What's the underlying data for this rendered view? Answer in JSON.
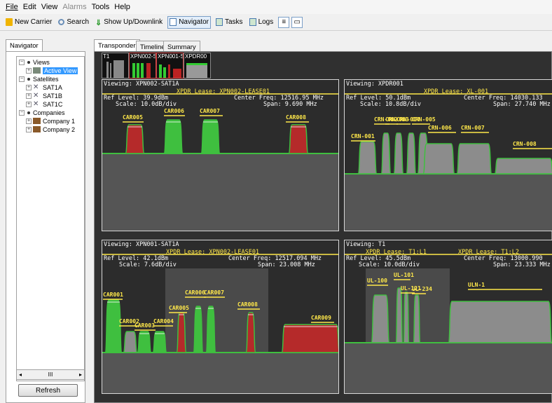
{
  "menu": [
    "File",
    "Edit",
    "View",
    "Alarms",
    "Tools",
    "Help"
  ],
  "toolbar": {
    "new_carrier": "New Carrier",
    "search": "Search",
    "updown": "Show Up/Downlink",
    "navigator": "Navigator",
    "tasks": "Tasks",
    "logs": "Logs"
  },
  "nav": {
    "tab": "Navigator",
    "refresh": "Refresh",
    "scroll": "III",
    "tree": {
      "views": "Views",
      "active": "Active View",
      "satellites": "Satellites",
      "sats": [
        "SAT1A",
        "SAT1B",
        "SAT1C"
      ],
      "companies": "Companies",
      "comps": [
        "Company 1",
        "Company 2"
      ]
    }
  },
  "tabs": {
    "transponder": "Transponder",
    "timeline": "Timeline",
    "summary": "Summary"
  },
  "thumbs": [
    "T1",
    "XPN002-S",
    "XPN001-S",
    "XPDR00"
  ],
  "panels": [
    {
      "viewing": "Viewing: XPN002-SAT1A",
      "lease": "XPDR Lease: XPN002-LEASE01",
      "ref": "Ref Level: 39.9dBm",
      "scale": "Scale: 10.0dB/div",
      "cf": "Center Freq: 12516.95 MHz",
      "span": "Span: 9.690 MHz",
      "carriers": [
        "CAR005",
        "CAR006",
        "CAR007",
        "CAR008"
      ]
    },
    {
      "viewing": "Viewing: XPDR001",
      "lease": "XPDR Lease: XL-001",
      "ref": "Ref Level: 50.1dBm",
      "scale": "Scale: 10.8dB/div",
      "cf": "Center Freq: 14030.133",
      "span": "Span: 27.740 MHz",
      "carriers": [
        "CRN-001",
        "CRN-002",
        "CRN-003",
        "CRN-004",
        "CRN-005",
        "CRN-006",
        "CRN-007",
        "CRN-008"
      ]
    },
    {
      "viewing": "Viewing: XPN001-SAT1A",
      "lease": "XPDR Lease: XPN002-LEASE01",
      "ref": "Ref Level: 42.1dBm",
      "scale": "Scale: 7.6dB/div",
      "cf": "Center Freq: 12517.094 MHz",
      "span": "Span: 23.008 MHz",
      "carriers": [
        "CAR001",
        "CAR002",
        "CAR003",
        "CAR004",
        "CAR005",
        "CAR006",
        "CAR007",
        "CAR008",
        "CAR009"
      ]
    },
    {
      "viewing": "Viewing: T1",
      "lease": "XPDR Lease: T1:L1",
      "lease2": "XPDR Lease: T1:L2",
      "ref": "Ref Level: 45.5dBm",
      "scale": "Scale: 10.0dB/div",
      "cf": "Center Freq: 13000.990",
      "span": "Span: 23.333 MHz",
      "carriers": [
        "UL-100",
        "UL-101",
        "UL-121",
        "UL-234",
        "ULN-1"
      ]
    }
  ],
  "colors": {
    "green": "#3fbf3f",
    "red": "#b52a2a",
    "gray": "#8c8c8c",
    "label": "#ffe84a"
  }
}
